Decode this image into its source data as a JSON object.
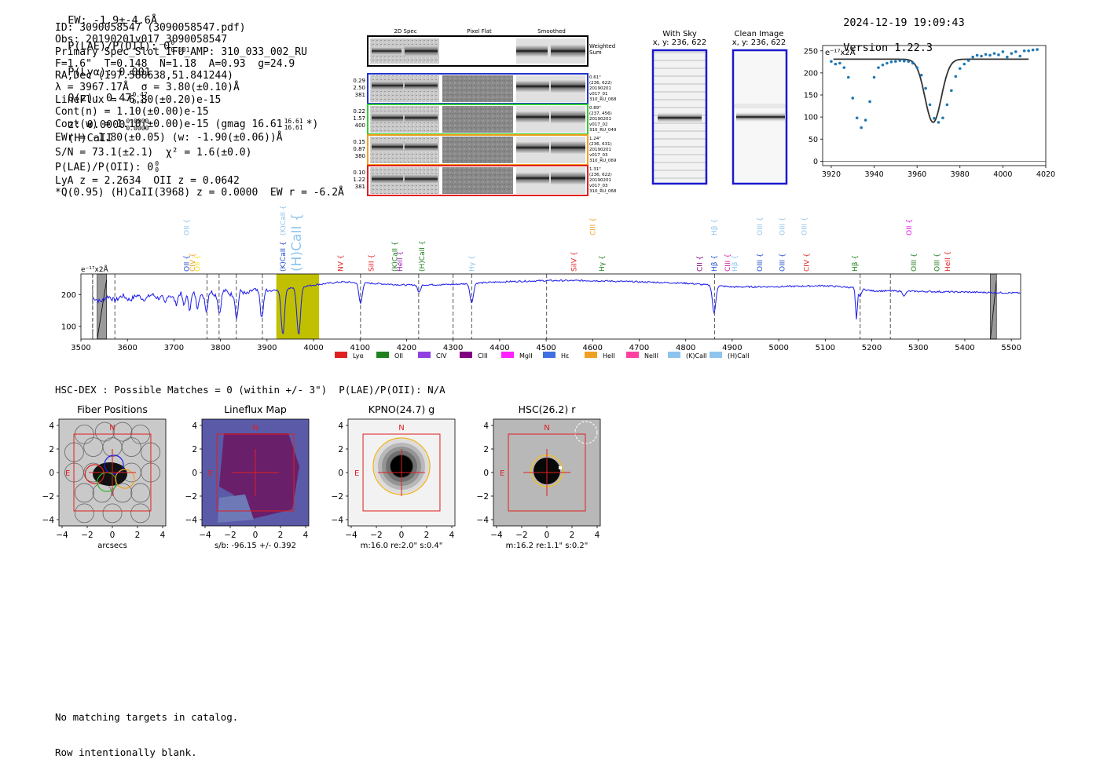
{
  "header": {
    "ew": "EW: -1.9±-4.6Å",
    "plae": "P(LAE)/P(OII): 0",
    "plae_sup": "0",
    "plae_sub": "0.001",
    "plya": "P(Lyα): 0.001",
    "qz": "Q(z): 0.47",
    "qz_sup": "0.47",
    "qz_sub": "0.47",
    "z": "z: 0.0000",
    "z_sup": "0.0000",
    "z_sub": "0.0000",
    "line": "(H)CaII",
    "datetime": "2024-12-19 19:09:43",
    "version": "Version 1.22.3"
  },
  "info": {
    "id": "ID: 3090058547 (3090058547.pdf)",
    "obs": "Obs: 20190201v017_3090058547",
    "primary": "Primary Spec_Slot_IFU_AMP: 310_033_002_RU",
    "fibers": "F=1.6\"  T=0.148  N=1.18  A=0.93  g=24.9",
    "radec": "RA,Dec (197.588638,51.841244)",
    "lambda": "λ = 3967.17Å  σ = 3.80(±0.10)Å",
    "lineflux": "LineFlux = -6.80(±0.20)e-15",
    "contn": "Cont(n) = 1.10(±0.00)e-15",
    "contw": "Cont(w) = 1.10(±0.00)e-15 (gmag 16.61",
    "contw_sup": "16.61",
    "contw_sub": "16.61",
    "contw_end": "*)",
    "ewr": "EWr = -1.80(±0.05) (w: -1.90(±0.06))Å",
    "sn": "S/N = 73.1(±2.1)  χ² = 1.6(±0.0)",
    "plae2": "P(LAE)/P(OII): 0",
    "plae2_sup": "0",
    "plae2_sub": "0",
    "lya": "LyA z = 2.2634  OII z = 0.0642",
    "q": "*Q(0.95) (H)CaII(3968) z = 0.0000  EW r = -6.2Å"
  },
  "stamps": {
    "col_headers": [
      "2D Spec",
      "Pixel Flat",
      "Smoothed"
    ],
    "weighted_label": "Weighted\nSum",
    "rows": [
      {
        "left": [
          "0.29",
          "2.50",
          "381"
        ],
        "right": [
          "0.61\"",
          "(236, 622)",
          "20190201",
          "v017_01",
          "310_RU_068"
        ],
        "color": "#2233cc"
      },
      {
        "left": [
          "0.22",
          "1.57",
          "400"
        ],
        "right": [
          "0.89\"",
          "(237, 456)",
          "20190201",
          "v017_02",
          "310_RU_049"
        ],
        "color": "#33cc33"
      },
      {
        "left": [
          "0.15",
          "0.87",
          "380"
        ],
        "right": [
          "1.24\"",
          "(236, 631)",
          "20190201",
          "v017_03",
          "310_RU_069"
        ],
        "color": "#f0a020"
      },
      {
        "left": [
          "0.10",
          "1.22",
          "381"
        ],
        "right": [
          "1.31\"",
          "(236, 622)",
          "20190201",
          "v017_03",
          "310_RU_068"
        ],
        "color": "#e02020"
      }
    ]
  },
  "sky": {
    "with_sky": "With Sky",
    "with_sky_xy": "x, y: 236, 622",
    "clean": "Clean Image",
    "clean_xy": "x, y: 236, 622"
  },
  "zoom_chart": {
    "unit_label": "e⁻¹⁷x2Å",
    "xlim": [
      3916,
      4020
    ],
    "ylim": [
      -10,
      262
    ],
    "xticks": [
      3920,
      3940,
      3960,
      3980,
      4000,
      4020
    ],
    "yticks": [
      0,
      50,
      100,
      150,
      200,
      250
    ],
    "points_x": [
      3920,
      3922,
      3924,
      3926,
      3928,
      3930,
      3932,
      3934,
      3936,
      3938,
      3940,
      3942,
      3944,
      3946,
      3948,
      3950,
      3952,
      3954,
      3956,
      3958,
      3960,
      3962,
      3964,
      3966,
      3968,
      3970,
      3972,
      3974,
      3976,
      3978,
      3980,
      3982,
      3984,
      3986,
      3988,
      3990,
      3992,
      3994,
      3996,
      3998,
      4000,
      4002,
      4004,
      4006,
      4008,
      4010,
      4012,
      4014,
      4016
    ],
    "points_y": [
      226,
      220,
      222,
      212,
      190,
      143,
      98,
      76,
      93,
      135,
      190,
      212,
      218,
      222,
      225,
      226,
      228,
      227,
      226,
      222,
      212,
      195,
      165,
      128,
      97,
      88,
      98,
      128,
      160,
      192,
      210,
      220,
      228,
      236,
      240,
      238,
      242,
      240,
      244,
      241,
      248,
      236,
      244,
      248,
      238,
      250,
      250,
      252,
      253
    ],
    "model_continuum": 231,
    "model_center": 3967.5,
    "model_depth": 143,
    "model_sigma": 3.8
  },
  "spectrum_chart": {
    "unit_label": "e⁻¹⁷x2Å",
    "xlim": [
      3500,
      5520
    ],
    "ylim": [
      60,
      265
    ],
    "xticks": [
      3500,
      3600,
      3700,
      3800,
      3900,
      4000,
      4100,
      4200,
      4300,
      4400,
      4500,
      4600,
      4700,
      4800,
      4900,
      5000,
      5100,
      5200,
      5300,
      5400,
      5500
    ],
    "yticks": [
      100,
      200
    ],
    "highlight_range": [
      3920,
      4012
    ],
    "masked_ranges": [
      [
        3535,
        3555
      ],
      [
        5455,
        5468
      ]
    ],
    "dashed_lines": [
      3525,
      3573,
      3771,
      3797,
      3834,
      3890,
      4101,
      4226,
      4300,
      4340,
      4501,
      4862,
      5175,
      5240
    ],
    "line_labels": [
      {
        "x": 3727,
        "text": "OII",
        "color": "#1f4fd0",
        "row": "main"
      },
      {
        "x": 3727,
        "text": "OII",
        "color": "#8ec5ee",
        "row": "upper"
      },
      {
        "x": 3740,
        "text": "CIV",
        "color": "#f0a020",
        "row": "main"
      },
      {
        "x": 3750,
        "text": "OII",
        "color": "#f0e020",
        "row": "main"
      },
      {
        "x": 3934,
        "text": "(K)CaII",
        "color": "#1f4fd0",
        "row": "main"
      },
      {
        "x": 3934,
        "text": "(K)CaII",
        "color": "#8ec5ee",
        "row": "upper"
      },
      {
        "x": 3968,
        "text": "(H)CaII",
        "color": "#8ec5ee",
        "row": "big"
      },
      {
        "x": 4058,
        "text": "NV",
        "color": "#e02020",
        "row": "main"
      },
      {
        "x": 4124,
        "text": "SiII",
        "color": "#e02020",
        "row": "main"
      },
      {
        "x": 4186,
        "text": "HeII",
        "color": "#a020c0",
        "row": "main"
      },
      {
        "x": 4175,
        "text": "(K)CaII",
        "color": "#208020",
        "row": "main"
      },
      {
        "x": 4233,
        "text": "(H)CaII",
        "color": "#208020",
        "row": "main"
      },
      {
        "x": 4340,
        "text": "Hγ",
        "color": "#8ec5ee",
        "row": "main"
      },
      {
        "x": 4560,
        "text": "SiIV",
        "color": "#e02020",
        "row": "main"
      },
      {
        "x": 4600,
        "text": "CIII",
        "color": "#f0a020",
        "row": "upper"
      },
      {
        "x": 4620,
        "text": "Hγ",
        "color": "#208020",
        "row": "main"
      },
      {
        "x": 4830,
        "text": "CII",
        "color": "#800080",
        "row": "main"
      },
      {
        "x": 4861,
        "text": "Hβ",
        "color": "#1f4fd0",
        "row": "main"
      },
      {
        "x": 4861,
        "text": "Hβ",
        "color": "#8ec5ee",
        "row": "upper"
      },
      {
        "x": 4890,
        "text": "CIII",
        "color": "#d020a0",
        "row": "main"
      },
      {
        "x": 4905,
        "text": "Hβ",
        "color": "#8ec5ee",
        "row": "main"
      },
      {
        "x": 4959,
        "text": "OIII",
        "color": "#1f4fd0",
        "row": "main"
      },
      {
        "x": 4959,
        "text": "OIII",
        "color": "#8ec5ee",
        "row": "upper"
      },
      {
        "x": 5007,
        "text": "OIII",
        "color": "#1f4fd0",
        "row": "main"
      },
      {
        "x": 5007,
        "text": "OIII",
        "color": "#8ec5ee",
        "row": "upper"
      },
      {
        "x": 5055,
        "text": "OIII",
        "color": "#8ec5ee",
        "row": "upper"
      },
      {
        "x": 5060,
        "text": "CIV",
        "color": "#e02020",
        "row": "main"
      },
      {
        "x": 5164,
        "text": "Hβ",
        "color": "#208020",
        "row": "main"
      },
      {
        "x": 5290,
        "text": "OIII",
        "color": "#208020",
        "row": "main"
      },
      {
        "x": 5280,
        "text": "OII",
        "color": "#e010e0",
        "row": "upper"
      },
      {
        "x": 5340,
        "text": "OIII",
        "color": "#208020",
        "row": "main"
      },
      {
        "x": 5363,
        "text": "HeII",
        "color": "#e02020",
        "row": "main"
      }
    ],
    "legend": [
      {
        "label": "Lyα",
        "color": "#e02020"
      },
      {
        "label": "OII",
        "color": "#208020"
      },
      {
        "label": "CIV",
        "color": "#9040e0"
      },
      {
        "label": "CIII",
        "color": "#800080"
      },
      {
        "label": "MgII",
        "color": "#ff20ff"
      },
      {
        "label": "Hε",
        "color": "#4070e0"
      },
      {
        "label": "HeII",
        "color": "#f0a020"
      },
      {
        "label": "NeIII",
        "color": "#ff40a0"
      },
      {
        "label": "(K)CaII",
        "color": "#8ec5ee"
      },
      {
        "label": "(H)CaII",
        "color": "#8ec5ee"
      }
    ]
  },
  "matches": "HSC-DEX : Possible Matches = 0 (within +/- 3\")  P(LAE)/P(OII): N/A",
  "cutouts": [
    {
      "title": "Fiber Positions",
      "caption": "arcsecs",
      "type": "fiber"
    },
    {
      "title": "Lineflux Map",
      "caption": "s/b: -96.15 +/- 0.392",
      "type": "lineflux"
    },
    {
      "title": "KPNO(24.7) g",
      "caption": "m:16.0  re:2.0\"  s:0.4\"",
      "type": "kpno"
    },
    {
      "title": "HSC(26.2) r",
      "caption": "m:16.2  re:1.1\"  s:0.2\"",
      "type": "hsc"
    }
  ],
  "cutout_ticks": [
    "4",
    "2",
    "0",
    "−2",
    "−4"
  ],
  "cutout_xticks": [
    "−4",
    "−2",
    "0",
    "2",
    "4"
  ],
  "compass_n": "N",
  "compass_e": "E",
  "footer": {
    "line1": "No matching targets in catalog.",
    "line2": "Row intentionally blank."
  },
  "chart_data": [
    {
      "type": "scatter",
      "title": "",
      "xlabel": "",
      "ylabel": "e⁻¹⁷x2Å",
      "xlim": [
        3916,
        4020
      ],
      "ylim": [
        -10,
        262
      ],
      "x": [
        3920,
        3922,
        3924,
        3926,
        3928,
        3930,
        3932,
        3934,
        3936,
        3938,
        3940,
        3942,
        3944,
        3946,
        3948,
        3950,
        3952,
        3954,
        3956,
        3958,
        3960,
        3962,
        3964,
        3966,
        3968,
        3970,
        3972,
        3974,
        3976,
        3978,
        3980,
        3982,
        3984,
        3986,
        3988,
        3990,
        3992,
        3994,
        3996,
        3998,
        4000,
        4002,
        4004,
        4006,
        4008,
        4010,
        4012,
        4014,
        4016
      ],
      "y": [
        226,
        220,
        222,
        212,
        190,
        143,
        98,
        76,
        93,
        135,
        190,
        212,
        218,
        222,
        225,
        226,
        228,
        227,
        226,
        222,
        212,
        195,
        165,
        128,
        97,
        88,
        98,
        128,
        160,
        192,
        210,
        220,
        228,
        236,
        240,
        238,
        242,
        240,
        244,
        241,
        248,
        236,
        244,
        248,
        238,
        250,
        250,
        252,
        253
      ]
    },
    {
      "type": "line",
      "title": "",
      "xlabel": "",
      "ylabel": "e⁻¹⁷x2Å",
      "xlim": [
        3500,
        5520
      ],
      "ylim": [
        60,
        265
      ],
      "x": [
        3500,
        3550,
        3600,
        3650,
        3700,
        3750,
        3780,
        3800,
        3830,
        3850,
        3890,
        3900,
        3934,
        3950,
        3968,
        3990,
        4010,
        4050,
        4101,
        4150,
        4200,
        4226,
        4300,
        4340,
        4400,
        4500,
        4600,
        4700,
        4800,
        4862,
        4900,
        5000,
        5100,
        5164,
        5200,
        5300,
        5400,
        5500
      ],
      "y": [
        180,
        188,
        190,
        200,
        205,
        200,
        190,
        210,
        135,
        200,
        145,
        215,
        88,
        210,
        86,
        205,
        235,
        245,
        175,
        230,
        220,
        195,
        225,
        175,
        235,
        243,
        245,
        240,
        238,
        148,
        222,
        225,
        228,
        135,
        215,
        210,
        208,
        205
      ]
    }
  ]
}
